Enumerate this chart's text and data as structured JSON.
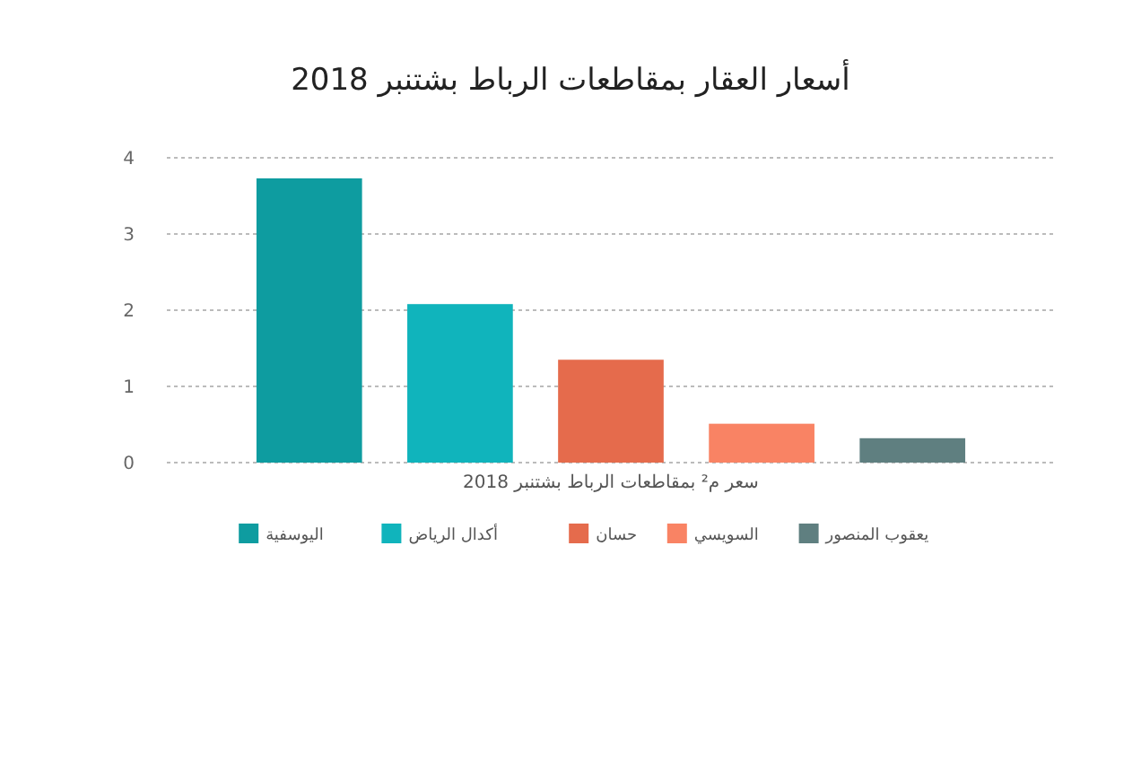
{
  "chart_data": {
    "type": "bar",
    "title": "أسعار العقار بمقاطعات الرباط بشتنبر 2018",
    "categories": [
      "سعر م² بمقاطعات الرباط بشتنبر 2018"
    ],
    "series": [
      {
        "name": "اليوسفية",
        "color": "#0e9ca0",
        "values": [
          3.73
        ]
      },
      {
        "name": "أكدال الرياض",
        "color": "#10b4bc",
        "values": [
          2.08
        ]
      },
      {
        "name": "حسان",
        "color": "#e56b4c",
        "values": [
          1.35
        ]
      },
      {
        "name": "السويسي",
        "color": "#f98364",
        "values": [
          0.51
        ]
      },
      {
        "name": "يعقوب المنصور",
        "color": "#5f7f80",
        "values": [
          0.32
        ]
      }
    ],
    "ylim": [
      0,
      4
    ],
    "yticks": [
      0,
      1,
      2,
      3,
      4
    ],
    "grid": "y",
    "legend": "bottom"
  }
}
